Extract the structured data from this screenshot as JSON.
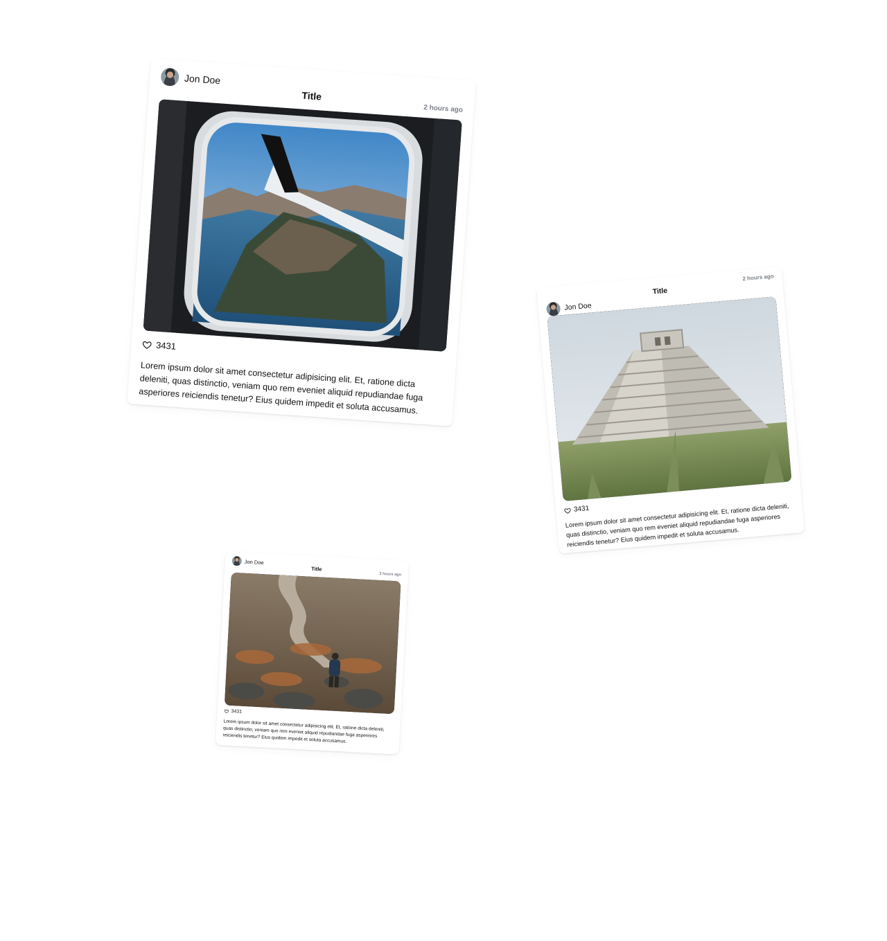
{
  "posts": [
    {
      "author": "Jon Doe",
      "title": "Title",
      "timestamp": "2 hours ago",
      "likes": "3431",
      "caption": "Lorem ipsum dolor sit amet consectetur adipisicing elit. Et, ratione dicta deleniti, quas distinctio, veniam quo rem eveniet aliquid repudiandae fuga asperiores reiciendis tenetur? Eius quidem impedit et soluta accusamus."
    },
    {
      "author": "Jon Doe",
      "title": "Title",
      "timestamp": "2 hours ago",
      "likes": "3431",
      "caption": "Lorem ipsum dolor sit amet consectetur adipisicing elit. Et, ratione dicta deleniti, quas distinctio, veniam quo rem eveniet aliquid repudiandae fuga asperiores reiciendis tenetur? Eius quidem impedit et soluta accusamus."
    },
    {
      "author": "Jon Doe",
      "title": "Title",
      "timestamp": "2 hours ago",
      "likes": "3431",
      "caption": "Lorem ipsum dolor sit amet consectetur adipisicing elit. Et, ratione dicta deleniti, quas distinctio, veniam quo rem eveniet aliquid repudiandae fuga asperiores reiciendis tenetur? Eius quidem impedit et soluta accusamus."
    }
  ],
  "icons": {
    "like": "heart-icon",
    "avatar": "avatar"
  },
  "colors": {
    "text": "#111111",
    "timestamp": "#7a7f87",
    "background": "#ffffff"
  }
}
